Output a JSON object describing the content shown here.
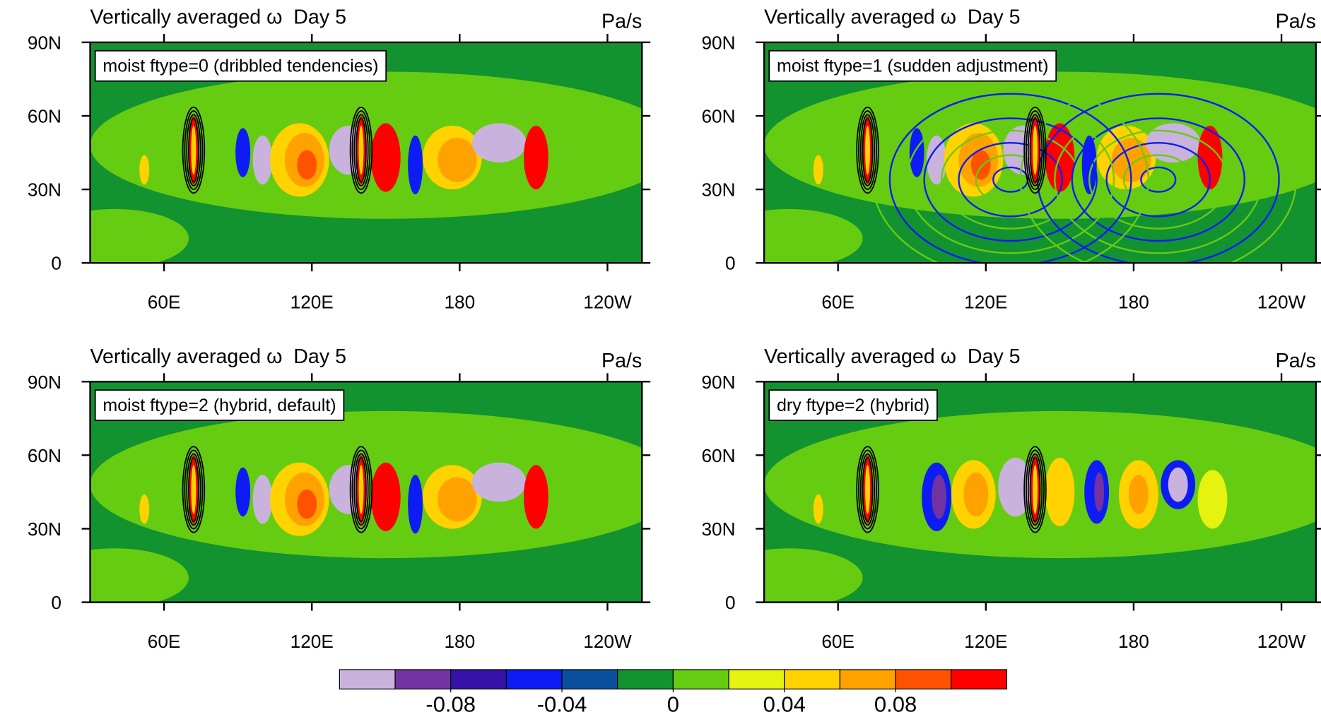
{
  "chart_data": [
    {
      "type": "contour",
      "title": "Vertically averaged ω  Day 5",
      "units": "Pa/s",
      "annotation": "moist ftype=0 (dribbled tendencies)",
      "xlim": [
        30,
        254
      ],
      "xticks": [
        {
          "value": 60,
          "label": "60E"
        },
        {
          "value": 120,
          "label": "120E"
        },
        180,
        {
          "value": 240,
          "label": "120W"
        }
      ],
      "ylim": [
        0,
        90
      ],
      "yticks": [
        0,
        {
          "value": 30,
          "label": "30N"
        },
        {
          "value": 60,
          "label": "60N"
        },
        {
          "value": 90,
          "label": "90N"
        }
      ]
    },
    {
      "type": "contour",
      "title": "Vertically averaged ω  Day 5",
      "units": "Pa/s",
      "annotation": "moist ftype=1 (sudden adjustment)",
      "xlim": [
        30,
        254
      ],
      "xticks": [
        {
          "value": 60,
          "label": "60E"
        },
        {
          "value": 120,
          "label": "120E"
        },
        180,
        {
          "value": 240,
          "label": "120W"
        }
      ],
      "ylim": [
        0,
        90
      ],
      "yticks": [
        0,
        {
          "value": 30,
          "label": "30N"
        },
        {
          "value": 60,
          "label": "60N"
        },
        {
          "value": 90,
          "label": "90N"
        }
      ]
    },
    {
      "type": "contour",
      "title": "Vertically averaged ω  Day 5",
      "units": "Pa/s",
      "annotation": "moist ftype=2 (hybrid, default)",
      "xlim": [
        30,
        254
      ],
      "xticks": [
        {
          "value": 60,
          "label": "60E"
        },
        {
          "value": 120,
          "label": "120E"
        },
        180,
        {
          "value": 240,
          "label": "120W"
        }
      ],
      "ylim": [
        0,
        90
      ],
      "yticks": [
        0,
        {
          "value": 30,
          "label": "30N"
        },
        {
          "value": 60,
          "label": "60N"
        },
        {
          "value": 90,
          "label": "90N"
        }
      ]
    },
    {
      "type": "contour",
      "title": "Vertically averaged ω  Day 5",
      "units": "Pa/s",
      "annotation": "dry ftype=2 (hybrid)",
      "xlim": [
        30,
        254
      ],
      "xticks": [
        {
          "value": 60,
          "label": "60E"
        },
        {
          "value": 120,
          "label": "120E"
        },
        180,
        {
          "value": 240,
          "label": "120W"
        }
      ],
      "ylim": [
        0,
        90
      ],
      "yticks": [
        0,
        {
          "value": 30,
          "label": "30N"
        },
        {
          "value": 60,
          "label": "60N"
        },
        {
          "value": 90,
          "label": "90N"
        }
      ]
    },
    {
      "type": "colorbar",
      "xlim": [
        -0.12,
        0.12
      ],
      "levels": [
        -0.1,
        -0.08,
        -0.06,
        -0.04,
        -0.02,
        0,
        0.02,
        0.04,
        0.06,
        0.08,
        0.1
      ],
      "colors": [
        "#c9b3dd",
        "#7232a2",
        "#3612a8",
        "#0c1cf2",
        "#0a4f9e",
        "#139230",
        "#66cc12",
        "#e6f210",
        "#ffd200",
        "#ffa200",
        "#ff5200",
        "#ff0000"
      ],
      "xticks": [
        -0.08,
        -0.04,
        0,
        0.04,
        0.08
      ]
    }
  ]
}
